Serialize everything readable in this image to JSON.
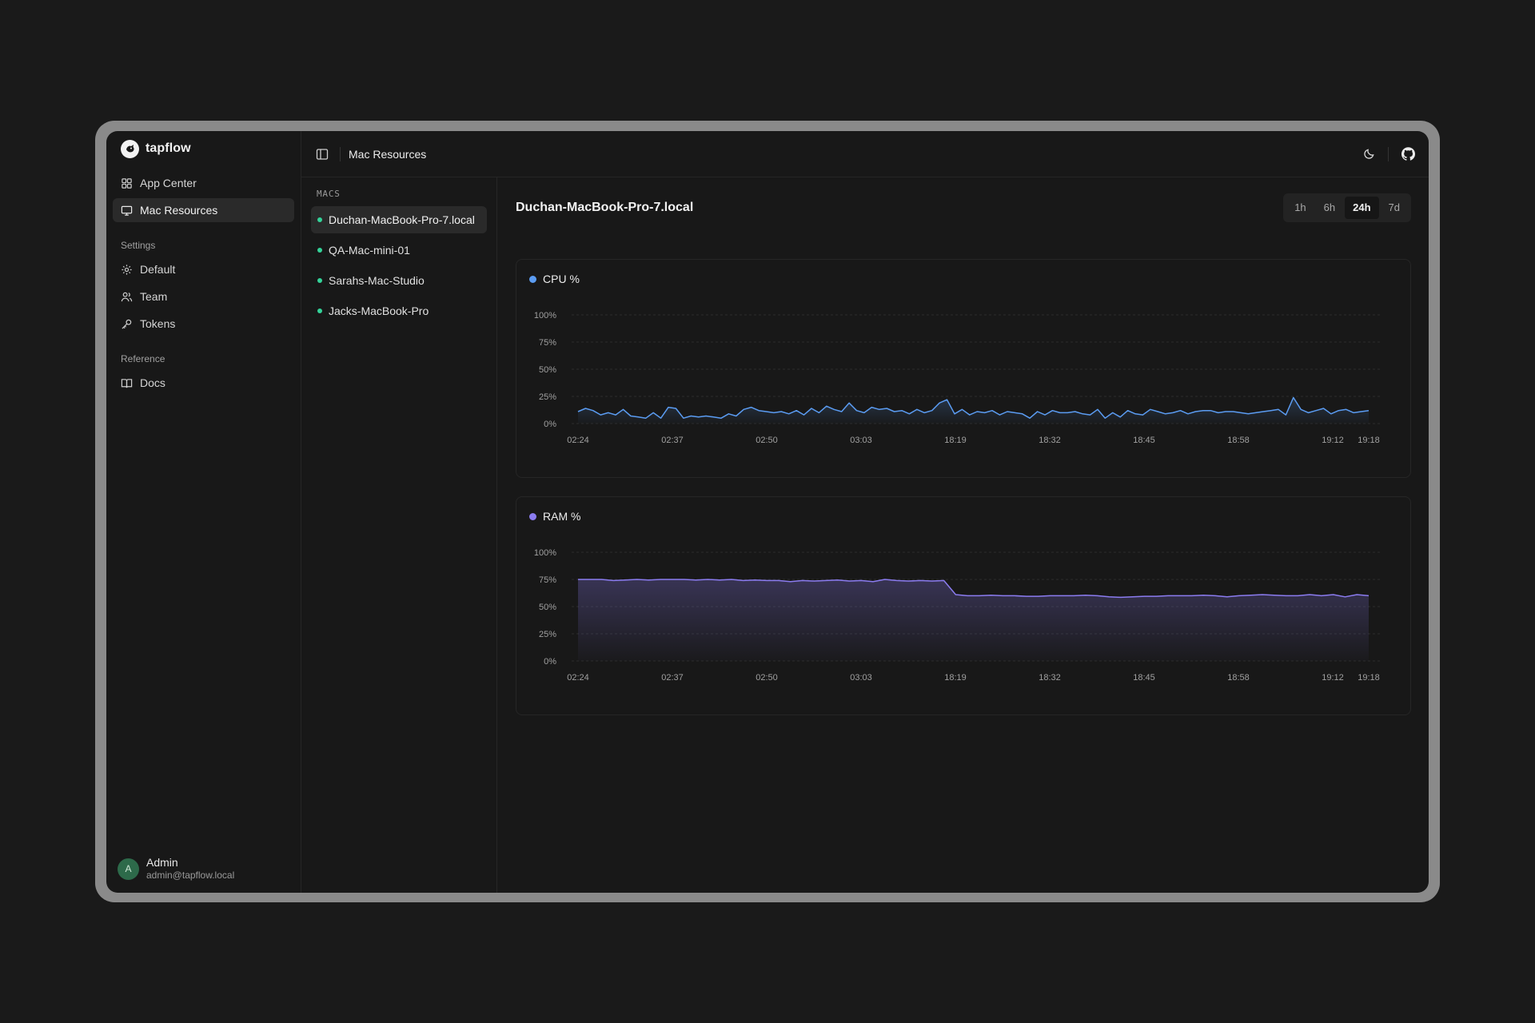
{
  "app": {
    "name": "tapflow"
  },
  "sidebar": {
    "items": [
      {
        "label": "App Center"
      },
      {
        "label": "Mac Resources"
      }
    ],
    "settings_title": "Settings",
    "settings": [
      {
        "label": "Default"
      },
      {
        "label": "Team"
      },
      {
        "label": "Tokens"
      }
    ],
    "reference_title": "Reference",
    "reference": [
      {
        "label": "Docs"
      }
    ]
  },
  "user": {
    "initial": "A",
    "name": "Admin",
    "email": "admin@tapflow.local"
  },
  "topbar": {
    "title": "Mac Resources"
  },
  "macs": {
    "label": "MACS",
    "items": [
      {
        "name": "Duchan-MacBook-Pro-7.local"
      },
      {
        "name": "QA-Mac-mini-01"
      },
      {
        "name": "Sarahs-Mac-Studio"
      },
      {
        "name": "Jacks-MacBook-Pro"
      }
    ]
  },
  "detail": {
    "title": "Duchan-MacBook-Pro-7.local"
  },
  "range": {
    "options": [
      "1h",
      "6h",
      "24h",
      "7d"
    ],
    "selected": "24h"
  },
  "colors": {
    "cpu": "#5b9cf2",
    "ram": "#8b7cf0",
    "online": "#34d399"
  },
  "chart_data": [
    {
      "type": "line",
      "title": "CPU %",
      "y_ticks": [
        "100%",
        "75%",
        "50%",
        "25%",
        "0%"
      ],
      "ylim": [
        0,
        100
      ],
      "x_ticks": [
        "02:24",
        "02:37",
        "02:50",
        "03:03",
        "18:19",
        "18:32",
        "18:45",
        "18:58",
        "19:12",
        "19:18"
      ],
      "grid": true,
      "series": [
        {
          "values": [
            11,
            14,
            12,
            8,
            10,
            8,
            13,
            7,
            6,
            5,
            10,
            5,
            15,
            14,
            5,
            7,
            6,
            7,
            6,
            5,
            9,
            7,
            13,
            15,
            12,
            11,
            10,
            11,
            9,
            12,
            8,
            14,
            10,
            16,
            13,
            11,
            19,
            12,
            10,
            15,
            13,
            14,
            11,
            12,
            9,
            13,
            10,
            12,
            19,
            22,
            9,
            13,
            8,
            11,
            10,
            12,
            8,
            11,
            10,
            9,
            5,
            11,
            8,
            12,
            10,
            10,
            11,
            9,
            8,
            13,
            5,
            10,
            6,
            12,
            9,
            8,
            13,
            11,
            9,
            10,
            12,
            9,
            11,
            12,
            12,
            10,
            11,
            11,
            10,
            9,
            10,
            11,
            12,
            13,
            8,
            24,
            13,
            10,
            12,
            14,
            9,
            12,
            13,
            10,
            11,
            12
          ]
        }
      ]
    },
    {
      "type": "area",
      "title": "RAM %",
      "y_ticks": [
        "100%",
        "75%",
        "50%",
        "25%",
        "0%"
      ],
      "ylim": [
        0,
        100
      ],
      "x_ticks": [
        "02:24",
        "02:37",
        "02:50",
        "03:03",
        "18:19",
        "18:32",
        "18:45",
        "18:58",
        "19:12",
        "19:18"
      ],
      "grid": true,
      "series": [
        {
          "values": [
            75,
            75,
            75,
            74,
            74.5,
            75,
            74.5,
            75,
            75,
            75,
            74.5,
            75,
            74.5,
            75,
            74,
            74.5,
            74,
            74,
            73,
            74,
            73.5,
            74,
            74.5,
            73.5,
            74,
            73,
            75,
            74,
            73.5,
            74,
            73.5,
            74,
            61,
            60,
            60,
            60.5,
            60,
            60,
            59.5,
            59.5,
            60,
            60,
            60,
            60.5,
            60,
            59,
            58.5,
            59,
            59.5,
            59.5,
            60,
            60,
            60,
            60.5,
            60,
            59,
            60,
            60.5,
            61,
            60.5,
            60,
            60,
            61,
            60,
            61,
            59,
            61,
            60
          ]
        }
      ]
    }
  ]
}
